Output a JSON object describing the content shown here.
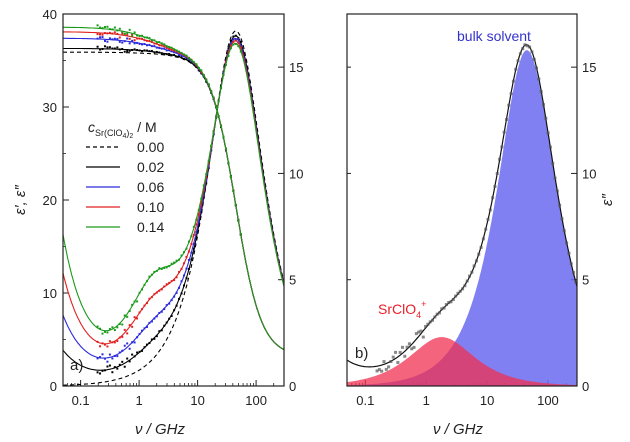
{
  "chart_data": [
    {
      "type": "line",
      "panel_label": "a)",
      "xlabel": "ν / GHz",
      "ylabel": "ε′, ε″",
      "xscale": "log",
      "xlim": [
        0.05,
        300
      ],
      "ylim_left": [
        0,
        40
      ],
      "ylim_right": [
        0,
        17.5
      ],
      "x_ticks": [
        "0.1",
        "1",
        "10",
        "100"
      ],
      "y_ticks_left": [
        "0",
        "10",
        "20",
        "30",
        "40"
      ],
      "y_ticks_right": [
        "0",
        "5",
        "10",
        "15"
      ],
      "legend_title": "c_Sr(ClO4)2 / M",
      "legend_title_parts": {
        "main": "c",
        "sub": "Sr(ClO",
        "sub_sub": "4",
        "sub_close": ")",
        "sub_2": "2",
        "unit": " / M"
      },
      "legend_position": "left-middle",
      "series": [
        {
          "name": "0.00",
          "color": "#000000",
          "dashed": true,
          "eps_prime_static": 35.9,
          "eps_double_prime_low_freq": 0.0,
          "eps_double_prime_peak": 16.7
        },
        {
          "name": "0.02",
          "color": "#000000",
          "dashed": false,
          "eps_prime_static": 36.3,
          "eps_double_prime_low_freq": 1.0,
          "eps_double_prime_peak": 16.4
        },
        {
          "name": "0.06",
          "color": "#2a2adc",
          "dashed": false,
          "eps_prime_static": 37.4,
          "eps_double_prime_low_freq": 2.0,
          "eps_double_prime_peak": 16.2
        },
        {
          "name": "0.10",
          "color": "#e02020",
          "dashed": false,
          "eps_prime_static": 38.1,
          "eps_double_prime_low_freq": 3.2,
          "eps_double_prime_peak": 16.0
        },
        {
          "name": "0.14",
          "color": "#1a9a1a",
          "dashed": false,
          "eps_prime_static": 38.6,
          "eps_double_prime_low_freq": 4.3,
          "eps_double_prime_peak": 15.8
        }
      ]
    },
    {
      "type": "area",
      "panel_label": "b)",
      "xlabel": "ν / GHz",
      "ylabel": "ε″",
      "xscale": "log",
      "xlim": [
        0.05,
        300
      ],
      "ylim": [
        0,
        17.5
      ],
      "x_ticks": [
        "0.1",
        "1",
        "10",
        "100"
      ],
      "y_ticks": [
        "0",
        "5",
        "10",
        "15"
      ],
      "series": [
        {
          "name": "SrClO4+",
          "label_main": "SrClO",
          "label_sub": "4",
          "label_sup": "+",
          "color": "#f03050",
          "peak_frequency_GHz": 1.8,
          "peak_value": 2.3
        },
        {
          "name": "bulk solvent",
          "color": "#6a6af0",
          "peak_frequency_GHz": 45,
          "peak_value": 15.8
        }
      ]
    }
  ]
}
